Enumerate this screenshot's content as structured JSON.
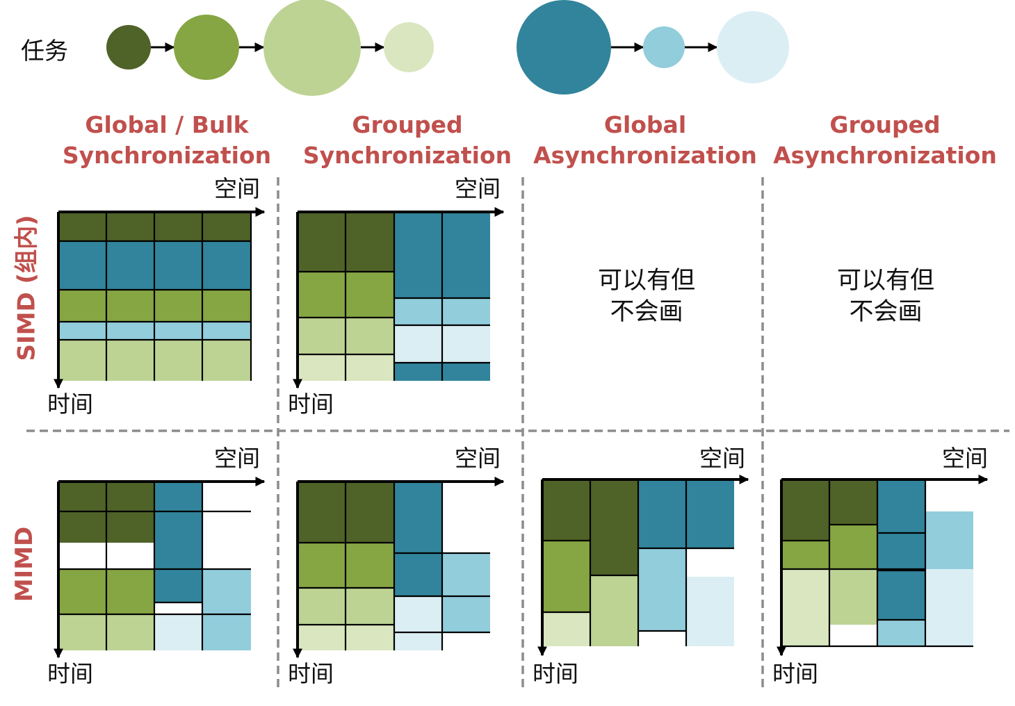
{
  "task_label": "任务",
  "colors": {
    "g1": "#4F6228",
    "g2": "#86A543",
    "g3": "#BDD394",
    "g4": "#D9E6BF",
    "b1": "#31849B",
    "b2": "#92CDDC",
    "b3": "#DBEEF4",
    "title": "#C0504D",
    "divider": "#8C8C8C"
  },
  "tasks": {
    "green": [
      "g1",
      "g2",
      "g3",
      "g4"
    ],
    "blue": [
      "b1",
      "b2",
      "b3"
    ]
  },
  "columns": [
    {
      "line1": "Global / Bulk",
      "line2": "Synchronization"
    },
    {
      "line1": "Grouped",
      "line2": "Synchronization"
    },
    {
      "line1": "Global",
      "line2": "Asynchronization"
    },
    {
      "line1": "Grouped",
      "line2": "Asynchronization"
    }
  ],
  "rows": [
    {
      "label": "SIMD (组内)"
    },
    {
      "label": "MIMD"
    }
  ],
  "axis": {
    "space": "空间",
    "time": "时间"
  },
  "note": {
    "line1": "可以有但",
    "line2": "不会画"
  }
}
